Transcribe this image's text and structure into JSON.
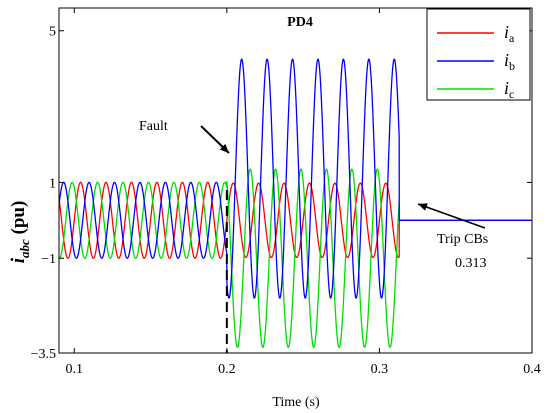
{
  "chart_data": {
    "type": "line",
    "title": "PD4",
    "xlabel": "Time (s)",
    "ylabel_main": "i",
    "ylabel_sub": "abc",
    "ylabel_unit": " (pu)",
    "xlim": [
      0.09,
      0.4
    ],
    "ylim": [
      -3.5,
      5.6
    ],
    "x_ticks": [
      0.1,
      0.2,
      0.3,
      0.4
    ],
    "x_tick_labels": [
      "0.1",
      "0.2",
      "0.3",
      "0.4"
    ],
    "y_ticks": [
      -3.5,
      -1,
      1,
      5
    ],
    "y_tick_labels": [
      "−3.5",
      "−1",
      "1",
      "5"
    ],
    "grid": false,
    "legend_position": "top-right",
    "fault_time": 0.2,
    "trip_time": 0.313,
    "frequency_hz": 60,
    "series": [
      {
        "name": "a",
        "color": "#ff0000",
        "prefault_amplitude": 1,
        "phase_deg": 0,
        "postfault_offset": 0,
        "postfault_amplitude": 0.98
      },
      {
        "name": "b",
        "color": "#0000ff",
        "prefault_amplitude": 1,
        "phase_deg": -120,
        "postfault_offset": 1.1,
        "postfault_amplitude": 3.15
      },
      {
        "name": "c",
        "color": "#00dd00",
        "prefault_amplitude": 1,
        "phase_deg": 120,
        "postfault_offset": -1.0,
        "postfault_amplitude": 2.35
      }
    ],
    "annotations": [
      {
        "label": "Fault",
        "x": 0.2,
        "y": 0.8
      },
      {
        "label": "Trip CBs",
        "value": "0.313",
        "x": 0.313,
        "y": 0
      }
    ]
  }
}
